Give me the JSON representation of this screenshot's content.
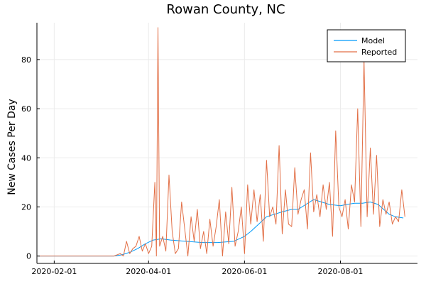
{
  "chart_data": {
    "type": "line",
    "title": "Rowan County, NC",
    "xlabel": "",
    "ylabel": "New Cases Per Day",
    "x_axis_type": "date",
    "xlim": [
      "2020-01-21",
      "2020-09-19"
    ],
    "ylim": [
      -3,
      95
    ],
    "x_ticks": [
      "2020-02-01",
      "2020-04-01",
      "2020-06-01",
      "2020-08-01"
    ],
    "y_ticks": [
      0,
      20,
      40,
      60,
      80
    ],
    "grid": true,
    "legend_position": "top-right",
    "colors": {
      "Model": "#009af9",
      "Reported": "#e26f46"
    },
    "series": [
      {
        "name": "Model",
        "x": [
          "2020-01-22",
          "2020-03-10",
          "2020-03-15",
          "2020-03-20",
          "2020-03-25",
          "2020-03-30",
          "2020-04-04",
          "2020-04-09",
          "2020-04-15",
          "2020-04-25",
          "2020-05-05",
          "2020-05-15",
          "2020-05-25",
          "2020-06-01",
          "2020-06-05",
          "2020-06-10",
          "2020-06-15",
          "2020-06-20",
          "2020-06-25",
          "2020-07-01",
          "2020-07-05",
          "2020-07-10",
          "2020-07-15",
          "2020-07-20",
          "2020-07-25",
          "2020-08-01",
          "2020-08-05",
          "2020-08-10",
          "2020-08-15",
          "2020-08-20",
          "2020-08-25",
          "2020-09-01",
          "2020-09-05",
          "2020-09-10"
        ],
        "y": [
          0,
          0,
          0.5,
          1.5,
          3,
          5,
          6.5,
          7,
          6.5,
          6,
          5.5,
          5.5,
          6,
          8,
          10,
          13,
          16,
          17,
          18,
          19,
          19,
          21,
          23,
          22,
          21,
          20.5,
          21,
          21.5,
          21.5,
          22,
          21,
          17,
          16,
          15.5
        ]
      },
      {
        "name": "Reported",
        "x": [
          "2020-01-22",
          "2020-03-10",
          "2020-03-14",
          "2020-03-16",
          "2020-03-18",
          "2020-03-20",
          "2020-03-22",
          "2020-03-24",
          "2020-03-26",
          "2020-03-28",
          "2020-03-30",
          "2020-04-01",
          "2020-04-03",
          "2020-04-05",
          "2020-04-06",
          "2020-04-07",
          "2020-04-08",
          "2020-04-10",
          "2020-04-12",
          "2020-04-14",
          "2020-04-16",
          "2020-04-18",
          "2020-04-20",
          "2020-04-22",
          "2020-04-24",
          "2020-04-26",
          "2020-04-28",
          "2020-04-30",
          "2020-05-02",
          "2020-05-04",
          "2020-05-06",
          "2020-05-08",
          "2020-05-10",
          "2020-05-12",
          "2020-05-14",
          "2020-05-16",
          "2020-05-18",
          "2020-05-20",
          "2020-05-22",
          "2020-05-24",
          "2020-05-26",
          "2020-05-28",
          "2020-05-30",
          "2020-06-01",
          "2020-06-03",
          "2020-06-05",
          "2020-06-07",
          "2020-06-09",
          "2020-06-11",
          "2020-06-13",
          "2020-06-15",
          "2020-06-17",
          "2020-06-19",
          "2020-06-21",
          "2020-06-23",
          "2020-06-25",
          "2020-06-27",
          "2020-06-29",
          "2020-07-01",
          "2020-07-03",
          "2020-07-05",
          "2020-07-07",
          "2020-07-09",
          "2020-07-11",
          "2020-07-13",
          "2020-07-15",
          "2020-07-17",
          "2020-07-19",
          "2020-07-21",
          "2020-07-23",
          "2020-07-25",
          "2020-07-27",
          "2020-07-29",
          "2020-07-31",
          "2020-08-02",
          "2020-08-04",
          "2020-08-06",
          "2020-08-08",
          "2020-08-10",
          "2020-08-12",
          "2020-08-14",
          "2020-08-16",
          "2020-08-18",
          "2020-08-20",
          "2020-08-22",
          "2020-08-24",
          "2020-08-26",
          "2020-08-28",
          "2020-08-30",
          "2020-09-01",
          "2020-09-03",
          "2020-09-05",
          "2020-09-07",
          "2020-09-09",
          "2020-09-11"
        ],
        "y": [
          0,
          0,
          1,
          0,
          6,
          1,
          3,
          4,
          8,
          2,
          5,
          1,
          4,
          30,
          0,
          93,
          4,
          8,
          2,
          33,
          10,
          1,
          3,
          22,
          11,
          0,
          16,
          6,
          19,
          3,
          10,
          1,
          15,
          4,
          12,
          23,
          0,
          18,
          5,
          28,
          4,
          10,
          20,
          1,
          29,
          13,
          27,
          14,
          25,
          6,
          39,
          16,
          20,
          13,
          45,
          9,
          27,
          13,
          12,
          36,
          17,
          23,
          27,
          11,
          42,
          18,
          25,
          16,
          29,
          19,
          30,
          8,
          51,
          20,
          16,
          23,
          11,
          29,
          22,
          60,
          12,
          80,
          16,
          44,
          17,
          41,
          12,
          23,
          17,
          22,
          13,
          16,
          14,
          27,
          16
        ]
      }
    ]
  }
}
